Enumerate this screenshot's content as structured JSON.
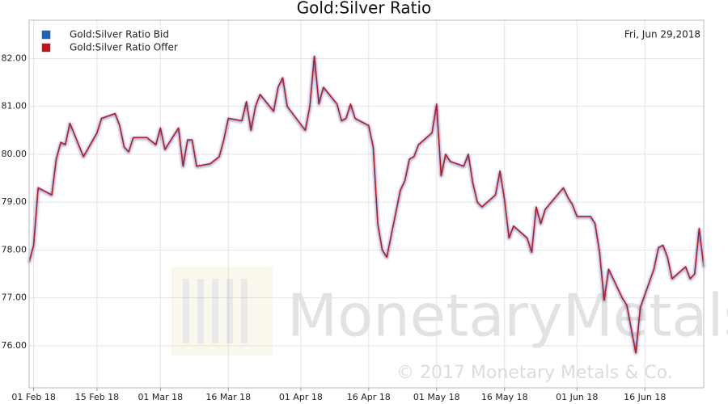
{
  "chart_data": {
    "type": "line",
    "title": "Gold:Silver Ratio",
    "date_label": "Fri, Jun 29,2018",
    "watermark": "MonetaryMetals",
    "copyright": "© 2017 Monetary Metals & Co.",
    "legend": "top-left",
    "grid": true,
    "xlim": [
      "2018-01-31",
      "2018-06-29"
    ],
    "ylim": [
      75.12,
      82.8
    ],
    "xticks": [
      {
        "value": "2018-02-01",
        "label": "01 Feb 18"
      },
      {
        "value": "2018-02-15",
        "label": "15 Feb 18"
      },
      {
        "value": "2018-03-01",
        "label": "01 Mar 18"
      },
      {
        "value": "2018-03-16",
        "label": "16 Mar 18"
      },
      {
        "value": "2018-04-01",
        "label": "01 Apr 18"
      },
      {
        "value": "2018-04-16",
        "label": "16 Apr 18"
      },
      {
        "value": "2018-05-01",
        "label": "01 May 18"
      },
      {
        "value": "2018-05-16",
        "label": "16 May 18"
      },
      {
        "value": "2018-06-01",
        "label": "01 Jun 18"
      },
      {
        "value": "2018-06-16",
        "label": "16 Jun 18"
      }
    ],
    "yticks": [
      {
        "value": 76,
        "label": "76.00"
      },
      {
        "value": 77,
        "label": "77.00"
      },
      {
        "value": 78,
        "label": "78.00"
      },
      {
        "value": 79,
        "label": "79.00"
      },
      {
        "value": 80,
        "label": "80.00"
      },
      {
        "value": 81,
        "label": "81.00"
      },
      {
        "value": 82,
        "label": "82.00"
      }
    ],
    "x": [
      "2018-01-31",
      "2018-02-01",
      "2018-02-02",
      "2018-02-05",
      "2018-02-06",
      "2018-02-07",
      "2018-02-08",
      "2018-02-09",
      "2018-02-12",
      "2018-02-15",
      "2018-02-16",
      "2018-02-19",
      "2018-02-20",
      "2018-02-21",
      "2018-02-22",
      "2018-02-23",
      "2018-02-26",
      "2018-02-28",
      "2018-03-01",
      "2018-03-02",
      "2018-03-05",
      "2018-03-06",
      "2018-03-07",
      "2018-03-08",
      "2018-03-09",
      "2018-03-12",
      "2018-03-14",
      "2018-03-15",
      "2018-03-16",
      "2018-03-19",
      "2018-03-20",
      "2018-03-21",
      "2018-03-22",
      "2018-03-23",
      "2018-03-26",
      "2018-03-27",
      "2018-03-28",
      "2018-03-29",
      "2018-04-02",
      "2018-04-03",
      "2018-04-04",
      "2018-04-05",
      "2018-04-06",
      "2018-04-09",
      "2018-04-10",
      "2018-04-11",
      "2018-04-12",
      "2018-04-13",
      "2018-04-16",
      "2018-04-17",
      "2018-04-18",
      "2018-04-19",
      "2018-04-20",
      "2018-04-23",
      "2018-04-24",
      "2018-04-25",
      "2018-04-26",
      "2018-04-27",
      "2018-04-30",
      "2018-05-01",
      "2018-05-02",
      "2018-05-03",
      "2018-05-04",
      "2018-05-07",
      "2018-05-08",
      "2018-05-09",
      "2018-05-10",
      "2018-05-11",
      "2018-05-14",
      "2018-05-15",
      "2018-05-16",
      "2018-05-17",
      "2018-05-18",
      "2018-05-21",
      "2018-05-22",
      "2018-05-23",
      "2018-05-24",
      "2018-05-25",
      "2018-05-29",
      "2018-05-30",
      "2018-05-31",
      "2018-06-01",
      "2018-06-04",
      "2018-06-05",
      "2018-06-06",
      "2018-06-07",
      "2018-06-08",
      "2018-06-11",
      "2018-06-12",
      "2018-06-13",
      "2018-06-14",
      "2018-06-15",
      "2018-06-18",
      "2018-06-19",
      "2018-06-20",
      "2018-06-21",
      "2018-06-22",
      "2018-06-25",
      "2018-06-26",
      "2018-06-27",
      "2018-06-28",
      "2018-06-29"
    ],
    "series": [
      {
        "name": "Gold:Silver Ratio Bid",
        "color": "#1565c0",
        "values": [
          77.75,
          78.1,
          79.3,
          79.15,
          79.9,
          80.25,
          80.2,
          80.65,
          79.95,
          80.45,
          80.75,
          80.85,
          80.6,
          80.15,
          80.05,
          80.35,
          80.35,
          80.2,
          80.55,
          80.1,
          80.55,
          79.75,
          80.3,
          80.3,
          79.75,
          79.8,
          79.95,
          80.3,
          80.75,
          80.7,
          81.1,
          80.5,
          81.0,
          81.25,
          80.9,
          81.4,
          81.6,
          81.0,
          80.5,
          81.0,
          82.05,
          81.05,
          81.4,
          81.05,
          80.7,
          80.75,
          81.05,
          80.75,
          80.6,
          80.15,
          78.55,
          78.0,
          77.85,
          79.25,
          79.45,
          79.9,
          79.95,
          80.2,
          80.45,
          81.05,
          79.55,
          80.0,
          79.85,
          79.75,
          80.0,
          79.4,
          79.0,
          78.9,
          79.15,
          79.65,
          79.05,
          78.25,
          78.5,
          78.25,
          77.95,
          78.9,
          78.55,
          78.85,
          79.3,
          79.1,
          78.95,
          78.7,
          78.7,
          78.55,
          77.95,
          76.95,
          77.6,
          77.0,
          76.85,
          76.35,
          75.85,
          76.8,
          77.6,
          78.05,
          78.1,
          77.85,
          77.4,
          77.65,
          77.4,
          77.5,
          78.45,
          77.65
        ]
      },
      {
        "name": "Gold:Silver Ratio Offer",
        "color": "#c0121c",
        "values": [
          77.75,
          78.1,
          79.3,
          79.15,
          79.9,
          80.25,
          80.2,
          80.65,
          79.95,
          80.45,
          80.75,
          80.85,
          80.6,
          80.15,
          80.05,
          80.35,
          80.35,
          80.2,
          80.55,
          80.1,
          80.55,
          79.75,
          80.3,
          80.3,
          79.75,
          79.8,
          79.95,
          80.3,
          80.75,
          80.7,
          81.1,
          80.5,
          81.0,
          81.25,
          80.9,
          81.4,
          81.6,
          81.0,
          80.5,
          81.0,
          82.05,
          81.05,
          81.4,
          81.05,
          80.7,
          80.75,
          81.05,
          80.75,
          80.6,
          80.15,
          78.55,
          78.0,
          77.85,
          79.25,
          79.45,
          79.9,
          79.95,
          80.2,
          80.45,
          81.05,
          79.55,
          80.0,
          79.85,
          79.75,
          80.0,
          79.4,
          79.0,
          78.9,
          79.15,
          79.65,
          79.05,
          78.25,
          78.5,
          78.25,
          77.95,
          78.9,
          78.55,
          78.85,
          79.3,
          79.1,
          78.95,
          78.7,
          78.7,
          78.55,
          77.95,
          76.95,
          77.6,
          77.0,
          76.85,
          76.35,
          75.85,
          76.8,
          77.6,
          78.05,
          78.1,
          77.85,
          77.4,
          77.65,
          77.4,
          77.5,
          78.45,
          77.65
        ]
      }
    ]
  }
}
